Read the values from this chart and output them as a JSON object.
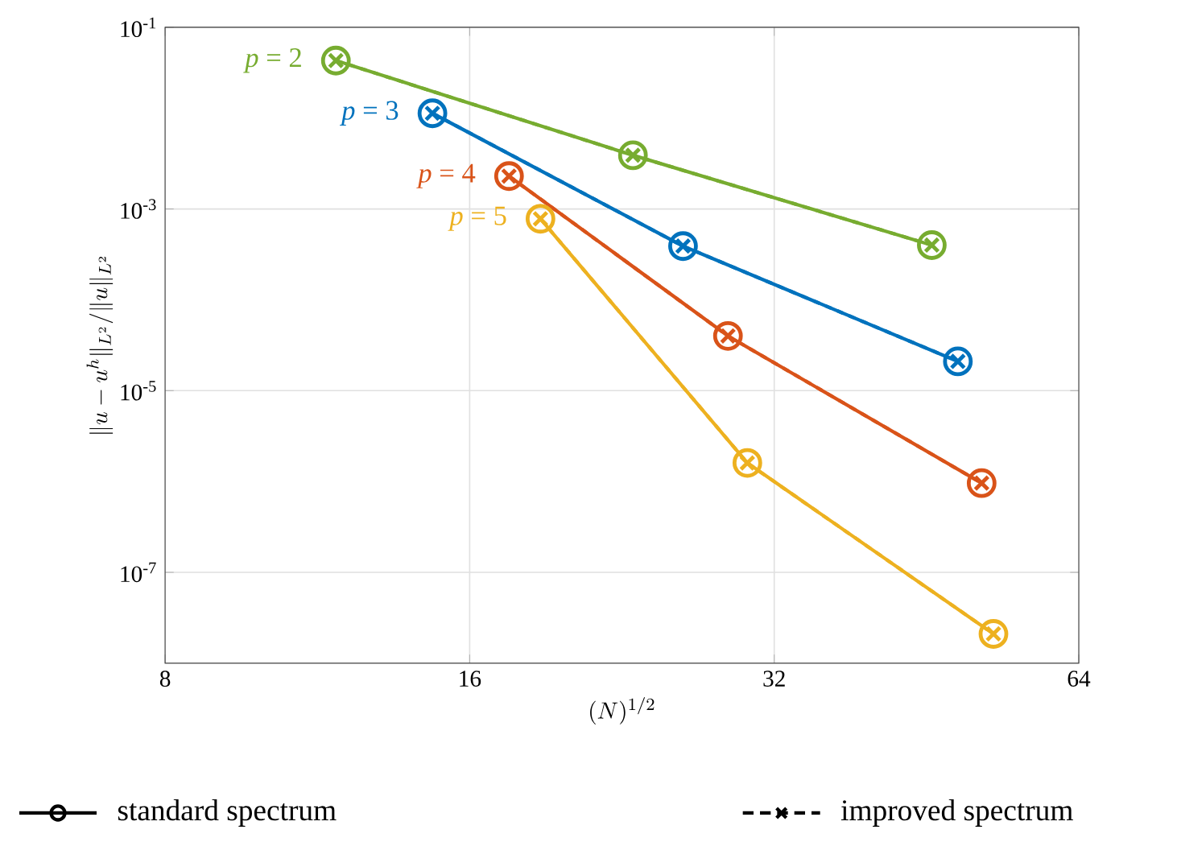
{
  "chart_data": {
    "type": "line",
    "xlabel": "(N)^{1/2}",
    "ylabel": "\\|u-u^h\\|_{L^2}/\\|u\\|_{L^2}",
    "log": "xy",
    "grid": true,
    "line_style": "solid",
    "marker": "circle",
    "xlim": [
      8,
      64
    ],
    "xticks": [
      8,
      16,
      32,
      64
    ],
    "ylim": [
      1e-08,
      0.1
    ],
    "yticks": [
      {
        "value": 0.1,
        "label": "10$^{-1}$"
      },
      {
        "value": 0.001,
        "label": "10$^{-3}$"
      },
      {
        "value": 1e-05,
        "label": "10$^{-5}$"
      },
      {
        "value": 1e-07,
        "label": "10$^{-7}$"
      }
    ],
    "annotations": [
      "standard spectrum",
      "improved spectrum"
    ],
    "series": [
      {
        "name": "*p* = 2",
        "color": "#77ac30",
        "x": [
          11.8,
          23.2,
          45.8
        ],
        "values": [
          0.043,
          0.0039,
          0.0004
        ]
      },
      {
        "name": "*p* = 3",
        "color": "#0072bd",
        "x": [
          14.7,
          26.0,
          48.6
        ],
        "values": [
          0.0113,
          0.00039,
          2.1e-05
        ]
      },
      {
        "name": "*p* = 4",
        "color": "#d95319",
        "x": [
          17.5,
          28.8,
          51.3
        ],
        "values": [
          0.0023,
          4e-05,
          9.6e-07
        ]
      },
      {
        "name": "*p* = 5",
        "color": "#edb120",
        "x": [
          18.8,
          30.1,
          52.7
        ],
        "values": [
          0.00078,
          1.6e-06,
          2.1e-08
        ]
      },
      {
        "color": "#77ac30",
        "marker": "cross",
        "line_style": "dashed",
        "x": [
          11.8,
          23.2,
          45.8
        ],
        "values": [
          0.043,
          0.0039,
          0.0004
        ]
      },
      {
        "color": "#0072bd",
        "marker": "cross",
        "line_style": "dashed",
        "x": [
          14.7,
          26.0,
          48.6
        ],
        "values": [
          0.0113,
          0.00039,
          2.1e-05
        ]
      },
      {
        "color": "#d95319",
        "marker": "cross",
        "line_style": "dashed",
        "x": [
          17.5,
          28.8,
          51.3
        ],
        "values": [
          0.0023,
          4e-05,
          9.6e-07
        ]
      },
      {
        "color": "#edb120",
        "marker": "cross",
        "line_style": "dashed",
        "x": [
          18.8,
          30.1,
          52.7
        ],
        "values": [
          0.00078,
          1.6e-06,
          2.1e-08
        ]
      }
    ]
  }
}
